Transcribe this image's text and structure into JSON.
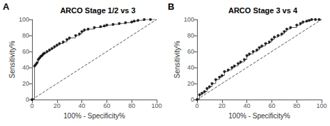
{
  "chart_data": [
    {
      "type": "line",
      "title": "ARCO Stage 1/2 vs 3",
      "annotations": [
        "A"
      ],
      "x_label": "100% - Specificity%",
      "y_label": "Sensitivity%",
      "xlim": [
        0,
        100
      ],
      "ylim": [
        0,
        100
      ],
      "xticks": [
        0,
        20,
        40,
        60,
        80,
        100
      ],
      "yticks": [
        0,
        20,
        40,
        60,
        80,
        100
      ],
      "grid": false,
      "series": [
        {
          "type": "line",
          "color": "#555555",
          "marker": "none",
          "line_style": "solid",
          "x": [
            0,
            2,
            2,
            3,
            3,
            4,
            4,
            5,
            5,
            6,
            6,
            7,
            7,
            8,
            8,
            9,
            9,
            10,
            10,
            12,
            12,
            14,
            14,
            16,
            16,
            18,
            18,
            20,
            20,
            22,
            22,
            25,
            25,
            28,
            28,
            30,
            30,
            35,
            35,
            38,
            38,
            40,
            40,
            42,
            42,
            45,
            45,
            50,
            50,
            55,
            55,
            58,
            58,
            60,
            60,
            65,
            65,
            70,
            70,
            75,
            75,
            80,
            80,
            82,
            82,
            85,
            85,
            90,
            90,
            95,
            95,
            100
          ],
          "values": [
            0,
            0,
            42,
            42,
            44,
            44,
            46,
            46,
            50,
            50,
            52,
            52,
            54,
            54,
            55,
            55,
            57,
            57,
            58,
            58,
            60,
            60,
            62,
            62,
            64,
            64,
            66,
            66,
            68,
            68,
            70,
            70,
            72,
            72,
            75,
            75,
            77,
            77,
            80,
            80,
            82,
            82,
            85,
            85,
            87,
            87,
            88,
            88,
            90,
            90,
            91,
            91,
            92,
            92,
            93,
            93,
            94,
            94,
            95,
            95,
            96,
            96,
            97,
            97,
            98,
            98,
            99,
            99,
            100,
            100,
            100,
            100
          ]
        },
        {
          "type": "scatter",
          "color": "#000000",
          "marker": "circle",
          "x": [
            0,
            2,
            3,
            4,
            5,
            6,
            7,
            8,
            9,
            10,
            12,
            14,
            16,
            18,
            20,
            22,
            25,
            28,
            30,
            35,
            38,
            40,
            42,
            45,
            50,
            55,
            58,
            60,
            65,
            70,
            75,
            80,
            82,
            85,
            90,
            95
          ],
          "values": [
            0,
            42,
            44,
            46,
            50,
            52,
            54,
            55,
            57,
            58,
            60,
            62,
            64,
            66,
            68,
            70,
            72,
            75,
            77,
            80,
            82,
            85,
            87,
            88,
            90,
            91,
            92,
            93,
            94,
            95,
            96,
            97,
            98,
            99,
            100,
            100
          ]
        },
        {
          "type": "line",
          "color": "#555555",
          "marker": "none",
          "line_style": "dashed",
          "x": [
            0,
            100
          ],
          "values": [
            0,
            100
          ]
        }
      ]
    },
    {
      "type": "line",
      "title": "ARCO Stage 3 vs 4",
      "annotations": [
        "B"
      ],
      "x_label": "100% - Specificity%",
      "y_label": "Sensitivity%",
      "xlim": [
        0,
        100
      ],
      "ylim": [
        0,
        100
      ],
      "xticks": [
        0,
        20,
        40,
        60,
        80,
        100
      ],
      "yticks": [
        0,
        20,
        40,
        60,
        80,
        100
      ],
      "grid": false,
      "series": [
        {
          "type": "line",
          "color": "#555555",
          "marker": "none",
          "line_style": "solid",
          "x": [
            0,
            2,
            2,
            4,
            4,
            6,
            6,
            8,
            8,
            10,
            10,
            12,
            12,
            15,
            15,
            18,
            18,
            20,
            20,
            22,
            22,
            25,
            25,
            28,
            28,
            30,
            30,
            33,
            33,
            35,
            35,
            38,
            38,
            40,
            40,
            42,
            42,
            45,
            45,
            48,
            48,
            50,
            50,
            52,
            52,
            55,
            55,
            58,
            58,
            60,
            60,
            62,
            62,
            65,
            65,
            68,
            68,
            70,
            70,
            72,
            72,
            75,
            75,
            80,
            80,
            83,
            83,
            85,
            85,
            88,
            88,
            90,
            90,
            92,
            92,
            95,
            95,
            98,
            98,
            100
          ],
          "values": [
            0,
            0,
            6,
            6,
            8,
            8,
            10,
            10,
            14,
            14,
            16,
            16,
            20,
            20,
            25,
            25,
            28,
            28,
            30,
            30,
            35,
            35,
            37,
            37,
            40,
            40,
            42,
            42,
            45,
            45,
            47,
            47,
            50,
            50,
            55,
            55,
            57,
            57,
            60,
            60,
            62,
            62,
            65,
            65,
            67,
            67,
            70,
            70,
            72,
            72,
            75,
            75,
            78,
            78,
            80,
            80,
            82,
            82,
            85,
            85,
            88,
            88,
            90,
            90,
            93,
            93,
            95,
            95,
            97,
            97,
            98,
            98,
            99,
            99,
            100,
            100,
            100,
            100,
            100,
            100
          ]
        },
        {
          "type": "scatter",
          "color": "#000000",
          "marker": "circle",
          "x": [
            0,
            2,
            4,
            6,
            8,
            10,
            12,
            15,
            18,
            20,
            22,
            25,
            28,
            30,
            33,
            35,
            38,
            40,
            42,
            45,
            48,
            50,
            52,
            55,
            58,
            60,
            62,
            65,
            68,
            70,
            72,
            75,
            80,
            83,
            85,
            88,
            90,
            92,
            95,
            98
          ],
          "values": [
            0,
            6,
            8,
            10,
            14,
            16,
            20,
            25,
            28,
            30,
            35,
            37,
            40,
            42,
            45,
            47,
            50,
            55,
            57,
            60,
            62,
            65,
            67,
            70,
            72,
            75,
            78,
            80,
            82,
            85,
            88,
            90,
            93,
            95,
            97,
            98,
            99,
            100,
            100,
            100
          ]
        },
        {
          "type": "line",
          "color": "#555555",
          "marker": "none",
          "line_style": "dashed",
          "x": [
            0,
            100
          ],
          "values": [
            0,
            100
          ]
        }
      ]
    }
  ]
}
